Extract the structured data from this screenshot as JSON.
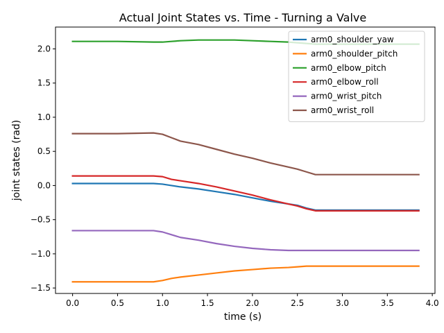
{
  "chart_data": {
    "type": "line",
    "title": "Actual Joint States vs. Time - Turning a Valve",
    "xlabel": "time (s)",
    "ylabel": "joint states (rad)",
    "xlim": [
      -0.19,
      4.03
    ],
    "ylim": [
      -1.58,
      2.32
    ],
    "xticks": [
      0.0,
      0.5,
      1.0,
      1.5,
      2.0,
      2.5,
      3.0,
      3.5,
      4.0
    ],
    "xtick_labels": [
      "0.0",
      "0.5",
      "1.0",
      "1.5",
      "2.0",
      "2.5",
      "3.0",
      "3.5",
      "4.0"
    ],
    "yticks": [
      -1.5,
      -1.0,
      -0.5,
      0.0,
      0.5,
      1.0,
      1.5,
      2.0
    ],
    "ytick_labels": [
      "−1.5",
      "−1.0",
      "−0.5",
      "0.0",
      "0.5",
      "1.0",
      "1.5",
      "2.0"
    ],
    "grid": false,
    "legend_position": "top-right",
    "x": [
      0.0,
      0.5,
      0.9,
      1.0,
      1.1,
      1.2,
      1.4,
      1.6,
      1.8,
      2.0,
      2.2,
      2.4,
      2.5,
      2.6,
      2.7,
      2.8,
      3.0,
      3.5,
      3.85
    ],
    "series": [
      {
        "name": "arm0_shoulder_yaw",
        "color": "#1f77b4",
        "values": [
          0.03,
          0.03,
          0.03,
          0.02,
          0.0,
          -0.02,
          -0.05,
          -0.09,
          -0.13,
          -0.18,
          -0.23,
          -0.27,
          -0.29,
          -0.33,
          -0.36,
          -0.36,
          -0.36,
          -0.36,
          -0.36
        ]
      },
      {
        "name": "arm0_shoulder_pitch",
        "color": "#ff7f0e",
        "values": [
          -1.41,
          -1.41,
          -1.41,
          -1.39,
          -1.36,
          -1.34,
          -1.31,
          -1.28,
          -1.25,
          -1.23,
          -1.21,
          -1.2,
          -1.19,
          -1.18,
          -1.18,
          -1.18,
          -1.18,
          -1.18,
          -1.18
        ]
      },
      {
        "name": "arm0_elbow_pitch",
        "color": "#2ca02c",
        "values": [
          2.11,
          2.11,
          2.1,
          2.1,
          2.11,
          2.12,
          2.13,
          2.13,
          2.13,
          2.12,
          2.11,
          2.1,
          2.09,
          2.08,
          2.07,
          2.07,
          2.07,
          2.07,
          2.07
        ]
      },
      {
        "name": "arm0_elbow_roll",
        "color": "#d62728",
        "values": [
          0.14,
          0.14,
          0.14,
          0.13,
          0.09,
          0.07,
          0.03,
          -0.02,
          -0.08,
          -0.14,
          -0.21,
          -0.27,
          -0.3,
          -0.34,
          -0.37,
          -0.37,
          -0.37,
          -0.37,
          -0.37
        ]
      },
      {
        "name": "arm0_wrist_pitch",
        "color": "#9467bd",
        "values": [
          -0.66,
          -0.66,
          -0.66,
          -0.68,
          -0.72,
          -0.76,
          -0.8,
          -0.85,
          -0.89,
          -0.92,
          -0.94,
          -0.95,
          -0.95,
          -0.95,
          -0.95,
          -0.95,
          -0.95,
          -0.95,
          -0.95
        ]
      },
      {
        "name": "arm0_wrist_roll",
        "color": "#8c564b",
        "values": [
          0.76,
          0.76,
          0.77,
          0.75,
          0.7,
          0.65,
          0.6,
          0.53,
          0.46,
          0.4,
          0.33,
          0.27,
          0.24,
          0.2,
          0.16,
          0.16,
          0.16,
          0.16,
          0.16
        ]
      }
    ]
  }
}
